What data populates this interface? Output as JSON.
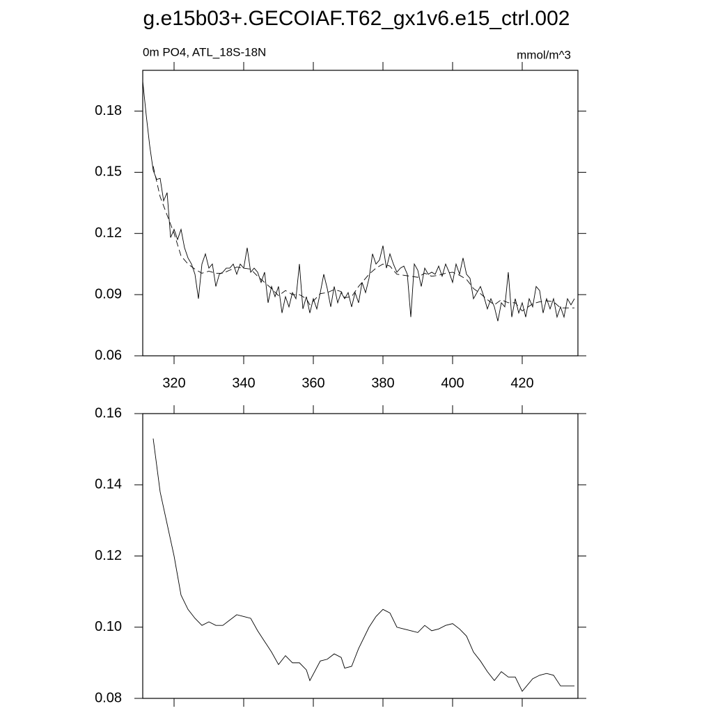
{
  "title": "g.e15b03+.GECOIAF.T62_gx1v6.e15_ctrl.002",
  "chart_data": [
    {
      "type": "line",
      "subtitle_left": "0m PO4, ATL_18S-18N",
      "subtitle_right": "mmol/m^3",
      "xlim": [
        311,
        436
      ],
      "ylim": [
        0.06,
        0.2
      ],
      "xticks": [
        320,
        340,
        360,
        380,
        400,
        420
      ],
      "yticks": [
        0.06,
        0.09,
        0.12,
        0.15,
        0.18
      ],
      "xtick_labels": true,
      "series": [
        {
          "color": "#000000",
          "dash": false,
          "x": [
            311,
            312,
            313,
            314,
            315,
            316,
            317,
            318,
            319,
            320,
            321,
            322,
            323,
            324,
            325,
            326,
            327,
            328,
            329,
            330,
            331,
            332,
            333,
            334,
            335,
            336,
            337,
            338,
            339,
            340,
            341,
            342,
            343,
            344,
            345,
            346,
            347,
            348,
            349,
            350,
            351,
            352,
            353,
            354,
            355,
            356,
            357,
            358,
            359,
            360,
            361,
            362,
            363,
            364,
            365,
            366,
            367,
            368,
            369,
            370,
            371,
            372,
            373,
            374,
            375,
            376,
            377,
            378,
            379,
            380,
            381,
            382,
            383,
            384,
            385,
            386,
            387,
            388,
            389,
            390,
            391,
            392,
            393,
            394,
            395,
            396,
            397,
            398,
            399,
            400,
            401,
            402,
            403,
            404,
            405,
            406,
            407,
            408,
            409,
            410,
            411,
            412,
            413,
            414,
            415,
            416,
            417,
            418,
            419,
            420,
            421,
            422,
            423,
            424,
            425,
            426,
            427,
            428,
            429,
            430,
            431,
            432,
            433,
            434,
            435
          ],
          "values": [
            0.1947,
            0.178,
            0.163,
            0.151,
            0.1465,
            0.147,
            0.136,
            0.14,
            0.118,
            0.122,
            0.117,
            0.122,
            0.113,
            0.108,
            0.105,
            0.1,
            0.088,
            0.105,
            0.11,
            0.103,
            0.105,
            0.094,
            0.1,
            0.101,
            0.103,
            0.103,
            0.105,
            0.1,
            0.105,
            0.103,
            0.113,
            0.101,
            0.103,
            0.101,
            0.096,
            0.101,
            0.086,
            0.094,
            0.089,
            0.094,
            0.081,
            0.089,
            0.084,
            0.091,
            0.088,
            0.105,
            0.083,
            0.089,
            0.081,
            0.088,
            0.083,
            0.091,
            0.1,
            0.093,
            0.084,
            0.094,
            0.086,
            0.091,
            0.088,
            0.091,
            0.084,
            0.091,
            0.086,
            0.096,
            0.091,
            0.098,
            0.11,
            0.105,
            0.107,
            0.114,
            0.103,
            0.11,
            0.105,
            0.101,
            0.103,
            0.104,
            0.1,
            0.079,
            0.105,
            0.102,
            0.094,
            0.103,
            0.1,
            0.101,
            0.1,
            0.104,
            0.099,
            0.105,
            0.101,
            0.096,
            0.105,
            0.1,
            0.108,
            0.1,
            0.098,
            0.088,
            0.091,
            0.094,
            0.089,
            0.083,
            0.088,
            0.084,
            0.077,
            0.086,
            0.084,
            0.101,
            0.079,
            0.088,
            0.081,
            0.086,
            0.079,
            0.088,
            0.084,
            0.094,
            0.092,
            0.081,
            0.088,
            0.083,
            0.088,
            0.079,
            0.084,
            0.079,
            0.088,
            0.085,
            0.088
          ]
        },
        {
          "color": "#000000",
          "dash": true,
          "x": [
            314,
            316,
            318,
            320,
            322,
            324,
            326,
            328,
            330,
            332,
            334,
            336,
            338,
            340,
            342,
            344,
            346,
            348,
            350,
            352,
            354,
            356,
            358,
            359,
            362,
            364,
            366,
            368,
            369,
            371,
            373,
            376,
            378,
            380,
            382,
            384,
            386,
            388,
            390,
            392,
            394,
            396,
            398,
            400,
            402,
            404,
            406,
            408,
            410,
            412,
            414,
            416,
            418,
            420,
            423,
            425,
            427,
            429,
            431,
            435
          ],
          "values": [
            0.153,
            0.138,
            0.129,
            0.12,
            0.109,
            0.105,
            0.1025,
            0.1005,
            0.1015,
            0.1005,
            0.1005,
            0.102,
            0.1035,
            0.103,
            0.1025,
            0.099,
            0.096,
            0.093,
            0.0895,
            0.092,
            0.09,
            0.09,
            0.088,
            0.085,
            0.0905,
            0.091,
            0.0925,
            0.0915,
            0.0885,
            0.089,
            0.094,
            0.1,
            0.103,
            0.105,
            0.104,
            0.1,
            0.0995,
            0.099,
            0.0985,
            0.1005,
            0.099,
            0.0995,
            0.1005,
            0.101,
            0.0995,
            0.0975,
            0.093,
            0.0905,
            0.0875,
            0.085,
            0.0875,
            0.086,
            0.086,
            0.082,
            0.0855,
            0.0865,
            0.087,
            0.0865,
            0.0835,
            0.0835
          ]
        }
      ]
    },
    {
      "type": "line",
      "xlim": [
        311,
        436
      ],
      "ylim": [
        0.08,
        0.16
      ],
      "xticks": [
        320,
        340,
        360,
        380,
        400,
        420
      ],
      "yticks": [
        0.08,
        {
          "value": 0.1,
          "label": "0.10"
        },
        0.12,
        0.14,
        0.16
      ],
      "xtick_labels": false,
      "series": [
        {
          "color": "#000000",
          "dash": false,
          "x": [
            314,
            316,
            318,
            320,
            322,
            324,
            326,
            328,
            330,
            332,
            334,
            336,
            338,
            340,
            342,
            344,
            346,
            348,
            350,
            352,
            354,
            356,
            358,
            359,
            362,
            364,
            366,
            368,
            369,
            371,
            373,
            376,
            378,
            380,
            382,
            384,
            386,
            388,
            390,
            392,
            394,
            396,
            398,
            400,
            402,
            404,
            406,
            408,
            410,
            412,
            414,
            416,
            418,
            420,
            423,
            425,
            427,
            429,
            431,
            435
          ],
          "values": [
            0.153,
            0.138,
            0.129,
            0.12,
            0.109,
            0.105,
            0.1025,
            0.1005,
            0.1015,
            0.1005,
            0.1005,
            0.102,
            0.1035,
            0.103,
            0.1025,
            0.099,
            0.096,
            0.093,
            0.0895,
            0.092,
            0.09,
            0.09,
            0.088,
            0.085,
            0.0905,
            0.091,
            0.0925,
            0.0915,
            0.0885,
            0.089,
            0.094,
            0.1,
            0.103,
            0.105,
            0.104,
            0.1,
            0.0995,
            0.099,
            0.0985,
            0.1005,
            0.099,
            0.0995,
            0.1005,
            0.101,
            0.0995,
            0.0975,
            0.093,
            0.0905,
            0.0875,
            0.085,
            0.0875,
            0.086,
            0.086,
            0.082,
            0.0855,
            0.0865,
            0.087,
            0.0865,
            0.0835,
            0.0835
          ]
        }
      ]
    }
  ]
}
